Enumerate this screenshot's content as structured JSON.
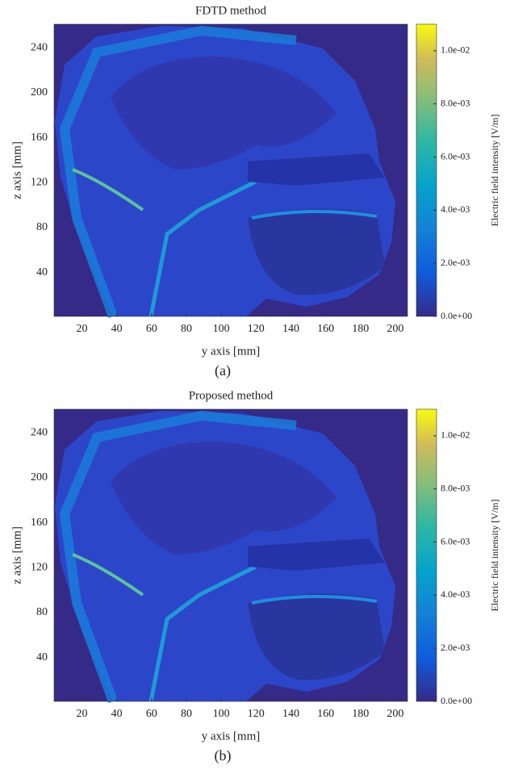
{
  "chart_data": [
    {
      "type": "heatmap",
      "title": "FDTD method",
      "xlabel": "y axis [mm]",
      "ylabel": "z axis [mm]",
      "caption": "(a)",
      "xlim": [
        4,
        207
      ],
      "xticks": [
        20,
        40,
        60,
        80,
        100,
        120,
        140,
        160,
        180,
        200
      ],
      "ylim": [
        1,
        261
      ],
      "yticks": [
        40,
        80,
        120,
        160,
        200,
        240
      ],
      "colorbar": {
        "label": "Electric field intensity [V/m]",
        "lim": [
          0,
          0.011
        ],
        "ticks": [
          {
            "value": 0,
            "label": "0.0e+00"
          },
          {
            "value": 0.002,
            "label": "2.0e-03"
          },
          {
            "value": 0.004,
            "label": "4.0e-03"
          },
          {
            "value": 0.006,
            "label": "6.0e-03"
          },
          {
            "value": 0.008,
            "label": "8.0e-03"
          },
          {
            "value": 0.01,
            "label": "1.0e-02"
          }
        ]
      }
    },
    {
      "type": "heatmap",
      "title": "Proposed method",
      "xlabel": "y axis [mm]",
      "ylabel": "z axis [mm]",
      "caption": "(b)",
      "xlim": [
        4,
        207
      ],
      "xticks": [
        20,
        40,
        60,
        80,
        100,
        120,
        140,
        160,
        180,
        200
      ],
      "ylim": [
        1,
        261
      ],
      "yticks": [
        40,
        80,
        120,
        160,
        200,
        240
      ],
      "colorbar": {
        "label": "Electric field intensity [V/m]",
        "lim": [
          0,
          0.011
        ],
        "ticks": [
          {
            "value": 0,
            "label": "0.0e+00"
          },
          {
            "value": 0.002,
            "label": "2.0e-03"
          },
          {
            "value": 0.004,
            "label": "4.0e-03"
          },
          {
            "value": 0.006,
            "label": "6.0e-03"
          },
          {
            "value": 0.008,
            "label": "8.0e-03"
          },
          {
            "value": 0.01,
            "label": "1.0e-02"
          }
        ]
      }
    }
  ]
}
